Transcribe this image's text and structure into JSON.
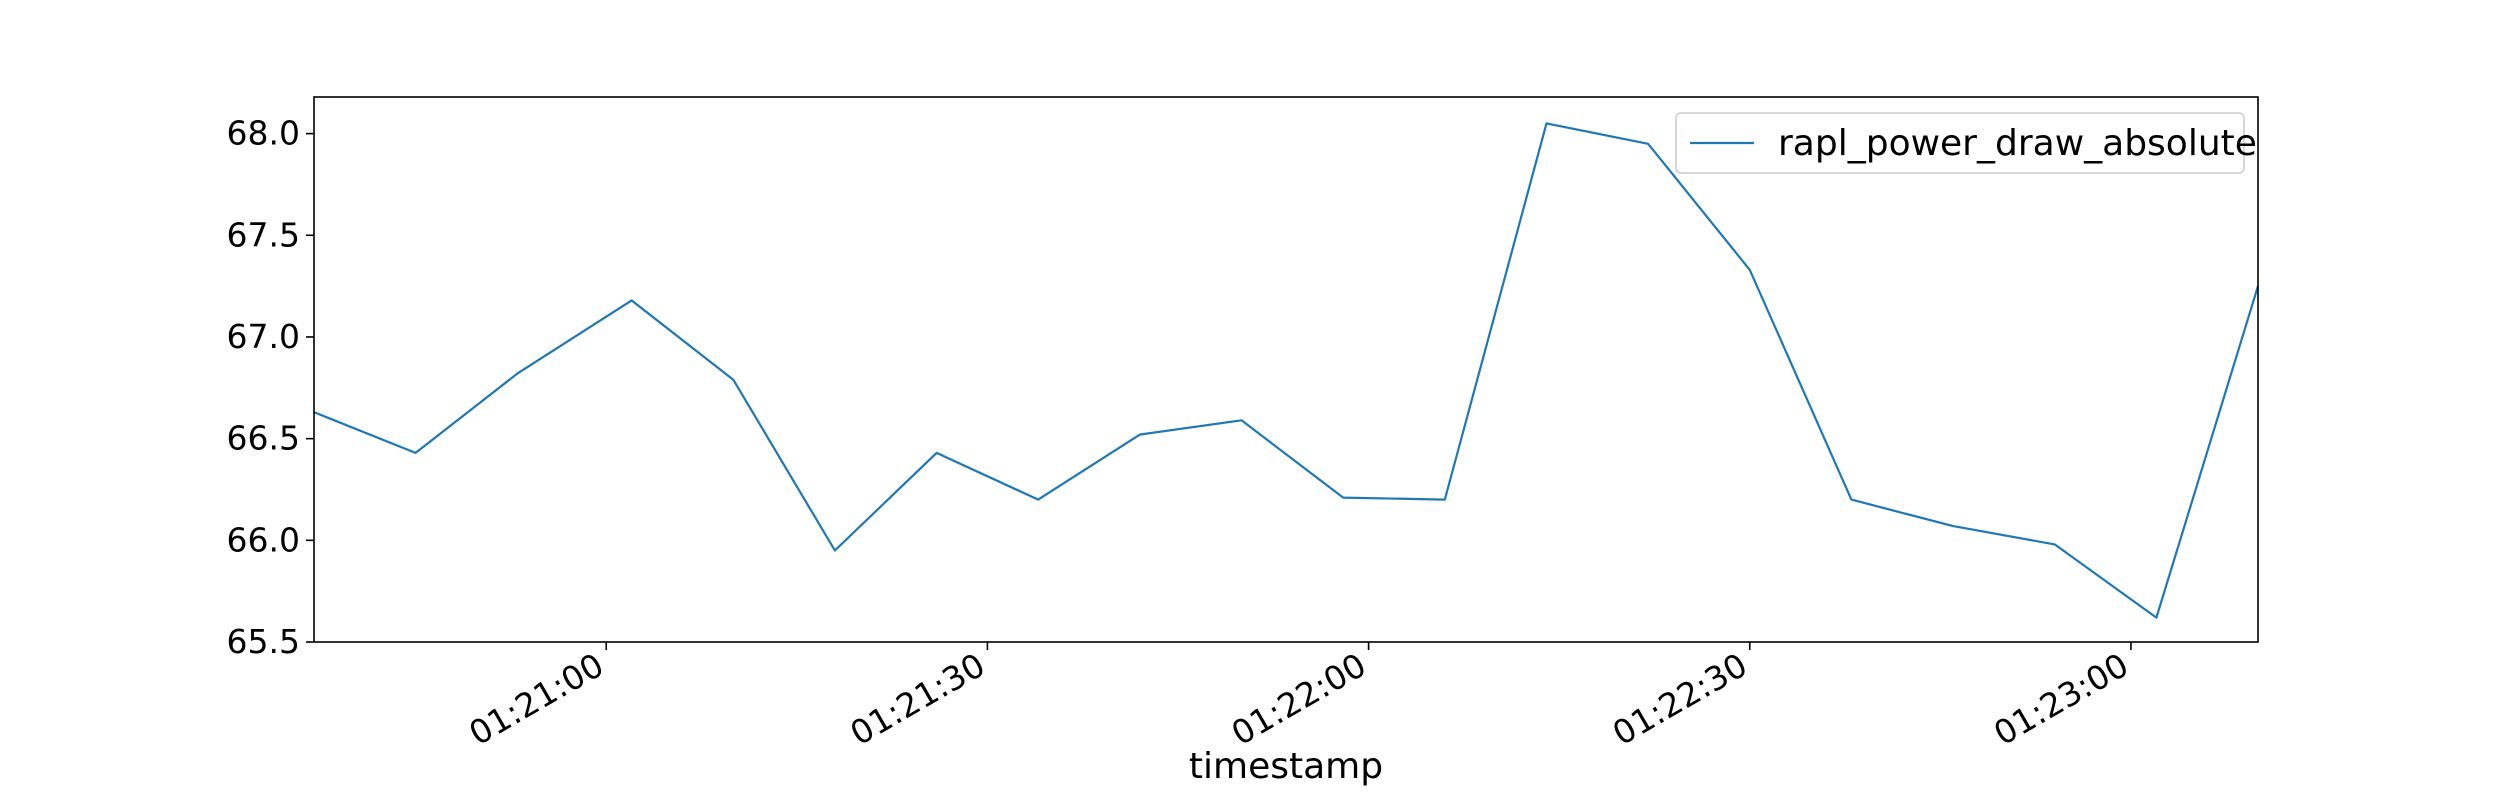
{
  "chart_data": {
    "type": "line",
    "title": "",
    "xlabel": "timestamp",
    "ylabel": "",
    "x_ticks": [
      "01:21:00",
      "01:21:30",
      "01:22:00",
      "01:22:30",
      "01:23:00"
    ],
    "x_tick_values": [
      "01:21:00",
      "01:21:30",
      "01:22:00",
      "01:22:30",
      "01:23:00"
    ],
    "y_ticks": [
      "65.5",
      "66.0",
      "66.5",
      "67.0",
      "67.5",
      "68.0"
    ],
    "xlim": [
      "01:20:37",
      "01:23:10"
    ],
    "ylim": [
      65.5,
      68.18
    ],
    "grid": false,
    "legend_position": "upper right",
    "series": [
      {
        "name": "rapl_power_draw_absolute",
        "color": "#1f77b4",
        "x": [
          "01:20:37",
          "01:20:45",
          "01:20:53",
          "01:21:02",
          "01:21:10",
          "01:21:18",
          "01:21:26",
          "01:21:34",
          "01:21:42",
          "01:21:50",
          "01:21:58",
          "01:22:06",
          "01:22:14",
          "01:22:22",
          "01:22:30",
          "01:22:38",
          "01:22:46",
          "01:22:54",
          "01:23:02",
          "01:23:10"
        ],
        "values": [
          66.63,
          66.43,
          66.82,
          67.18,
          66.79,
          65.95,
          66.43,
          66.2,
          66.52,
          66.59,
          66.21,
          66.2,
          68.05,
          67.95,
          67.33,
          66.2,
          66.07,
          65.98,
          65.62,
          67.25
        ]
      }
    ]
  }
}
